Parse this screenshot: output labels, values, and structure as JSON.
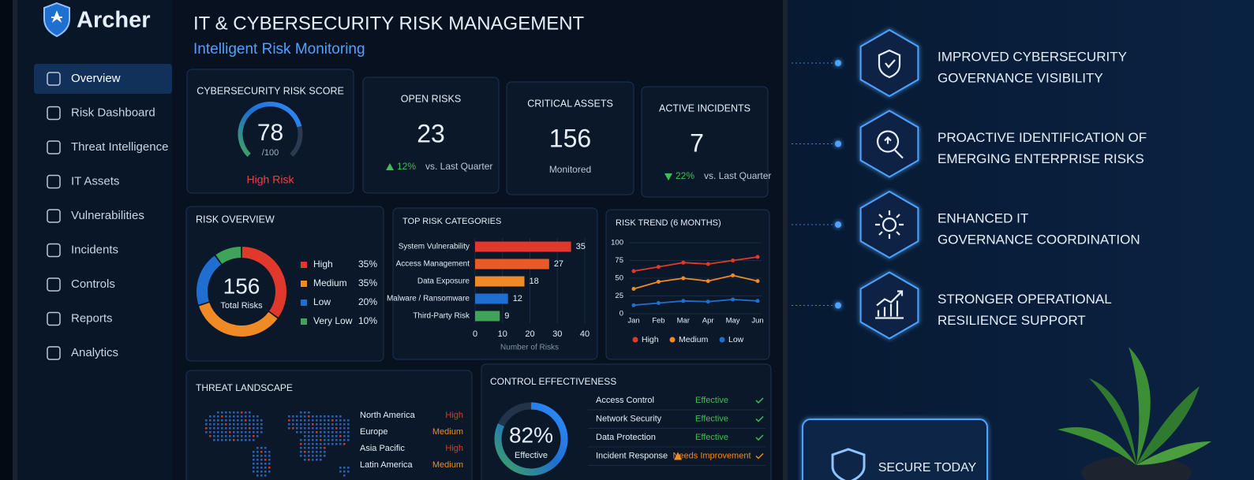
{
  "sidebar": {
    "brand": "Archer",
    "active": 0,
    "items": [
      "Overview",
      "Risk Dashboard",
      "Threat Intelligence",
      "IT Assets",
      "Vulnerabilities",
      "Incidents",
      "Controls",
      "Reports",
      "Analytics"
    ]
  },
  "header": {
    "title": "IT & CYBERSECURITY RISK MANAGEMENT",
    "subtitle": "Intelligent Risk Monitoring"
  },
  "kpis": [
    {
      "title": "CYBERSECURITY RISK SCORE",
      "value": 78,
      "range": [
        0,
        100
      ],
      "max_label": "/100",
      "status": "High Risk"
    },
    {
      "title": "OPEN RISKS",
      "value": 23,
      "change": "12%",
      "change_dir": "up",
      "change_note": "vs. Last Quarter"
    },
    {
      "title": "CRITICAL ASSETS",
      "value": 156,
      "note": "Monitored"
    },
    {
      "title": "ACTIVE INCIDENTS",
      "value": 7,
      "change": "22%",
      "change_dir": "down",
      "change_note": "vs. Last Quarter"
    }
  ],
  "chart_data": [
    {
      "type": "donut",
      "title": "RISK OVERVIEW",
      "categories": [
        "High",
        "Medium",
        "Low",
        "Very Low"
      ],
      "values": [
        35,
        35,
        20,
        10
      ],
      "value_labels": [
        "35%",
        "35%",
        "20%",
        "10%"
      ],
      "colors": [
        "#e0392b",
        "#f08a24",
        "#1f6fd1",
        "#3fa45a"
      ],
      "center_value": 156,
      "center_label": "Total Risks"
    },
    {
      "type": "hbar",
      "title": "TOP RISK CATEGORIES",
      "categories": [
        "System Vulnerability",
        "Access Management",
        "Data Exposure",
        "Malware / Ransomware",
        "Third-Party Risk"
      ],
      "values": [
        35,
        27,
        18,
        12,
        9
      ],
      "colors": [
        "#e0392b",
        "#ea5a26",
        "#f08a24",
        "#1f6fd1",
        "#3fa45a"
      ],
      "xlim": [
        0,
        40
      ],
      "xticks": [
        0,
        10,
        20,
        30,
        40
      ],
      "xlabel": "Number of Risks"
    },
    {
      "type": "line",
      "title": "RISK TREND (6 MONTHS)",
      "categories": [
        "Jan",
        "Feb",
        "Mar",
        "Apr",
        "May",
        "Jun"
      ],
      "series": [
        {
          "name": "High",
          "color": "#e0392b",
          "values": [
            60,
            66,
            72,
            70,
            75,
            80
          ]
        },
        {
          "name": "Medium",
          "color": "#f08a24",
          "values": [
            35,
            45,
            50,
            46,
            54,
            46
          ]
        },
        {
          "name": "Low",
          "color": "#1f6fd1",
          "values": [
            12,
            15,
            18,
            17,
            20,
            18
          ]
        }
      ],
      "ylim": [
        0,
        100
      ],
      "yticks": [
        0,
        25,
        50,
        75,
        100
      ],
      "grid": true,
      "legend": "bottom"
    }
  ],
  "threats": {
    "title": "THREAT LANDSCAPE",
    "regions": [
      {
        "name": "North America",
        "level": "High",
        "color": "#e0392b"
      },
      {
        "name": "Europe",
        "level": "Medium",
        "color": "#f08a24"
      },
      {
        "name": "Asia Pacific",
        "level": "High",
        "color": "#e0392b"
      },
      {
        "name": "Latin America",
        "level": "Medium",
        "color": "#f08a24"
      }
    ]
  },
  "controls": {
    "title": "CONTROL EFFECTIVENESS",
    "value": 82,
    "value_label": "82%",
    "range": [
      0,
      100
    ],
    "label": "Effective",
    "rows": [
      {
        "name": "Access Control",
        "status": "Effective",
        "color": "#3fbf5a",
        "warning": false
      },
      {
        "name": "Network Security",
        "status": "Effective",
        "color": "#3fbf5a",
        "warning": false
      },
      {
        "name": "Data Protection",
        "status": "Effective",
        "color": "#3fbf5a",
        "warning": false
      },
      {
        "name": "Incident Response",
        "status": "Needs Improvement",
        "color": "#f08a24",
        "warning": true
      }
    ]
  },
  "benefits": [
    {
      "lines": [
        "IMPROVED CYBERSECURITY",
        "GOVERNANCE VISIBILITY"
      ]
    },
    {
      "lines": [
        "PROACTIVE IDENTIFICATION OF",
        "EMERGING ENTERPRISE RISKS"
      ]
    },
    {
      "lines": [
        "ENHANCED IT",
        "GOVERNANCE COORDINATION"
      ]
    },
    {
      "lines": [
        "STRONGER OPERATIONAL",
        "RESILIENCE SUPPORT"
      ]
    }
  ],
  "badge": {
    "text": "SECURE TODAY"
  }
}
